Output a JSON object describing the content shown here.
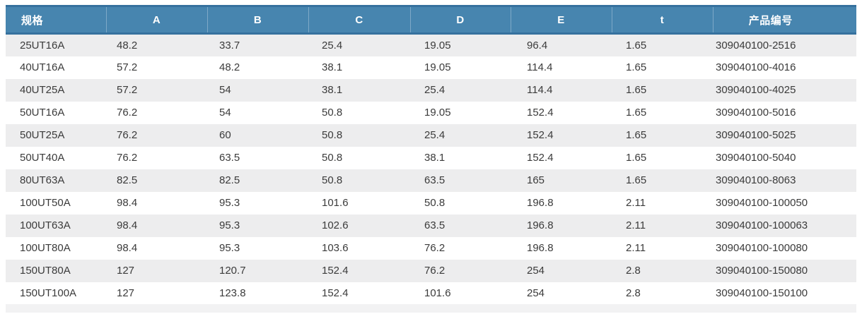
{
  "table": {
    "column_keys": [
      "spec",
      "a",
      "b",
      "c",
      "d",
      "e",
      "t",
      "product-code"
    ],
    "headers": [
      "规格",
      "A",
      "B",
      "C",
      "D",
      "E",
      "t",
      "产品编号"
    ],
    "rows": [
      [
        "25UT16A",
        "48.2",
        "33.7",
        "25.4",
        "19.05",
        "96.4",
        "1.65",
        "309040100-2516"
      ],
      [
        "40UT16A",
        "57.2",
        "48.2",
        "38.1",
        "19.05",
        "114.4",
        "1.65",
        "309040100-4016"
      ],
      [
        "40UT25A",
        "57.2",
        "54",
        "38.1",
        "25.4",
        "114.4",
        "1.65",
        "309040100-4025"
      ],
      [
        "50UT16A",
        "76.2",
        "54",
        "50.8",
        "19.05",
        "152.4",
        "1.65",
        "309040100-5016"
      ],
      [
        "50UT25A",
        "76.2",
        "60",
        "50.8",
        "25.4",
        "152.4",
        "1.65",
        "309040100-5025"
      ],
      [
        "50UT40A",
        "76.2",
        "63.5",
        "50.8",
        "38.1",
        "152.4",
        "1.65",
        "309040100-5040"
      ],
      [
        "80UT63A",
        "82.5",
        "82.5",
        "50.8",
        "63.5",
        "165",
        "1.65",
        "309040100-8063"
      ],
      [
        "100UT50A",
        "98.4",
        "95.3",
        "101.6",
        "50.8",
        "196.8",
        "2.11",
        "309040100-100050"
      ],
      [
        "100UT63A",
        "98.4",
        "95.3",
        "102.6",
        "63.5",
        "196.8",
        "2.11",
        "309040100-100063"
      ],
      [
        "100UT80A",
        "98.4",
        "95.3",
        "103.6",
        "76.2",
        "196.8",
        "2.11",
        "309040100-100080"
      ],
      [
        "150UT80A",
        "127",
        "120.7",
        "152.4",
        "76.2",
        "254",
        "2.8",
        "309040100-150080"
      ],
      [
        "150UT100A",
        "127",
        "123.8",
        "152.4",
        "101.6",
        "254",
        "2.8",
        "309040100-150100"
      ]
    ],
    "colors": {
      "header_bg": "#4785af",
      "header_edge": "#36719e",
      "header_text": "#ffffff",
      "row_alt_bg": "#ededee",
      "row_bg": "#ffffff",
      "body_text": "#3b3b3b"
    }
  },
  "chart_data": {
    "type": "table",
    "columns": [
      "规格",
      "A",
      "B",
      "C",
      "D",
      "E",
      "t",
      "产品编号"
    ],
    "rows": [
      [
        "25UT16A",
        "48.2",
        "33.7",
        "25.4",
        "19.05",
        "96.4",
        "1.65",
        "309040100-2516"
      ],
      [
        "40UT16A",
        "57.2",
        "48.2",
        "38.1",
        "19.05",
        "114.4",
        "1.65",
        "309040100-4016"
      ],
      [
        "40UT25A",
        "57.2",
        "54",
        "38.1",
        "25.4",
        "114.4",
        "1.65",
        "309040100-4025"
      ],
      [
        "50UT16A",
        "76.2",
        "54",
        "50.8",
        "19.05",
        "152.4",
        "1.65",
        "309040100-5016"
      ],
      [
        "50UT25A",
        "76.2",
        "60",
        "50.8",
        "25.4",
        "152.4",
        "1.65",
        "309040100-5025"
      ],
      [
        "50UT40A",
        "76.2",
        "63.5",
        "50.8",
        "38.1",
        "152.4",
        "1.65",
        "309040100-5040"
      ],
      [
        "80UT63A",
        "82.5",
        "82.5",
        "50.8",
        "63.5",
        "165",
        "1.65",
        "309040100-8063"
      ],
      [
        "100UT50A",
        "98.4",
        "95.3",
        "101.6",
        "50.8",
        "196.8",
        "2.11",
        "309040100-100050"
      ],
      [
        "100UT63A",
        "98.4",
        "95.3",
        "102.6",
        "63.5",
        "196.8",
        "2.11",
        "309040100-100063"
      ],
      [
        "100UT80A",
        "98.4",
        "95.3",
        "103.6",
        "76.2",
        "196.8",
        "2.11",
        "309040100-100080"
      ],
      [
        "150UT80A",
        "127",
        "120.7",
        "152.4",
        "76.2",
        "254",
        "2.8",
        "309040100-150080"
      ],
      [
        "150UT100A",
        "127",
        "123.8",
        "152.4",
        "101.6",
        "254",
        "2.8",
        "309040100-150100"
      ]
    ]
  }
}
